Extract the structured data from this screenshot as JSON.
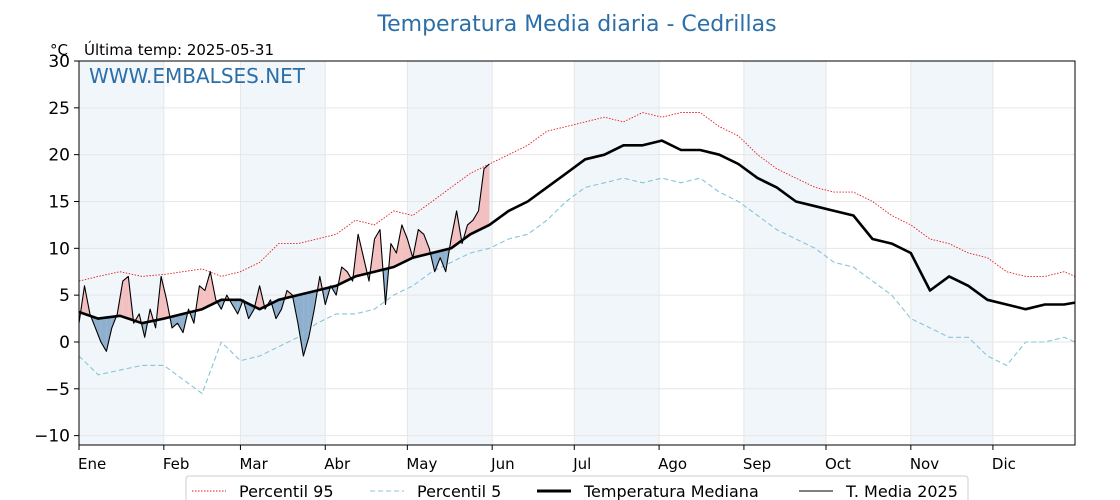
{
  "chart_data": {
    "type": "line",
    "title": "Temperatura Media diaria - Cedrillas",
    "unit_label": "°C",
    "subtitle": "Última temp: 2025-05-31",
    "watermark": "WWW.EMBALSES.NET",
    "ylim": [
      -11,
      30
    ],
    "yticks": [
      -10,
      -5,
      0,
      5,
      10,
      15,
      20,
      25,
      30
    ],
    "xlim": [
      1,
      365
    ],
    "months": [
      {
        "label": "Ene",
        "day": 1
      },
      {
        "label": "Feb",
        "day": 32
      },
      {
        "label": "Mar",
        "day": 60
      },
      {
        "label": "Abr",
        "day": 91
      },
      {
        "label": "May",
        "day": 121
      },
      {
        "label": "Jun",
        "day": 152
      },
      {
        "label": "Jul",
        "day": 182
      },
      {
        "label": "Ago",
        "day": 213
      },
      {
        "label": "Sep",
        "day": 244
      },
      {
        "label": "Oct",
        "day": 274
      },
      {
        "label": "Nov",
        "day": 305
      },
      {
        "label": "Dic",
        "day": 335
      }
    ],
    "grid": true,
    "legend_position": "bottom-center",
    "legend": [
      "Percentil 95",
      "Percentil 5",
      "Temperatura Mediana",
      "T. Media 2025"
    ],
    "series": [
      {
        "name": "Percentil 95",
        "color": "#e31a1c",
        "style": "dotted",
        "x": [
          1,
          8,
          16,
          24,
          32,
          39,
          46,
          53,
          60,
          67,
          74,
          81,
          88,
          95,
          102,
          109,
          116,
          123,
          130,
          137,
          144,
          151,
          158,
          165,
          172,
          179,
          186,
          193,
          200,
          207,
          214,
          221,
          228,
          235,
          242,
          249,
          256,
          263,
          270,
          277,
          284,
          291,
          298,
          305,
          312,
          319,
          326,
          333,
          340,
          347,
          354,
          361,
          365
        ],
        "values": [
          6.5,
          7.0,
          7.5,
          7.0,
          7.2,
          7.5,
          7.8,
          7.0,
          7.5,
          8.5,
          10.5,
          10.5,
          11.0,
          11.5,
          13.0,
          12.5,
          14.0,
          13.5,
          15.0,
          16.5,
          18.0,
          19.0,
          20.0,
          21.0,
          22.5,
          23.0,
          23.5,
          24.0,
          23.5,
          24.5,
          24.0,
          24.5,
          24.5,
          23.0,
          22.0,
          20.0,
          18.5,
          17.5,
          16.5,
          16.0,
          16.0,
          15.0,
          13.5,
          12.5,
          11.0,
          10.5,
          9.5,
          9.0,
          7.5,
          7.0,
          7.0,
          7.5,
          7.0
        ]
      },
      {
        "name": "Percentil 5",
        "color": "#89c4d8",
        "style": "dashed",
        "x": [
          1,
          8,
          16,
          24,
          32,
          39,
          46,
          53,
          60,
          67,
          74,
          81,
          88,
          95,
          102,
          109,
          116,
          123,
          130,
          137,
          144,
          151,
          158,
          165,
          172,
          179,
          186,
          193,
          200,
          207,
          214,
          221,
          228,
          235,
          242,
          249,
          256,
          263,
          270,
          277,
          284,
          291,
          298,
          305,
          312,
          319,
          326,
          333,
          340,
          347,
          354,
          361,
          365
        ],
        "values": [
          -1.5,
          -3.5,
          -3.0,
          -2.5,
          -2.5,
          -4.0,
          -5.5,
          0.0,
          -2.0,
          -1.5,
          -0.5,
          0.5,
          2.0,
          3.0,
          3.0,
          3.5,
          5.0,
          6.0,
          7.5,
          8.5,
          9.5,
          10.0,
          11.0,
          11.5,
          13.0,
          15.0,
          16.5,
          17.0,
          17.5,
          17.0,
          17.5,
          17.0,
          17.5,
          16.0,
          15.0,
          13.5,
          12.0,
          11.0,
          10.0,
          8.5,
          8.0,
          6.5,
          5.0,
          2.5,
          1.5,
          0.5,
          0.5,
          -1.5,
          -2.5,
          0.0,
          0.0,
          0.5,
          0.0
        ]
      },
      {
        "name": "Temperatura Mediana",
        "color": "#000000",
        "style": "solid-thick",
        "x": [
          1,
          8,
          16,
          24,
          32,
          39,
          46,
          53,
          60,
          67,
          74,
          81,
          88,
          95,
          102,
          109,
          116,
          123,
          130,
          137,
          144,
          151,
          158,
          165,
          172,
          179,
          186,
          193,
          200,
          207,
          214,
          221,
          228,
          235,
          242,
          249,
          256,
          263,
          270,
          277,
          284,
          291,
          298,
          305,
          312,
          319,
          326,
          333,
          340,
          347,
          354,
          361,
          365
        ],
        "values": [
          3.2,
          2.5,
          2.8,
          2.0,
          2.5,
          3.0,
          3.5,
          4.5,
          4.5,
          3.5,
          4.5,
          5.0,
          5.5,
          6.0,
          7.0,
          7.5,
          8.0,
          9.0,
          9.5,
          10.0,
          11.5,
          12.5,
          14.0,
          15.0,
          16.5,
          18.0,
          19.5,
          20.0,
          21.0,
          21.0,
          21.5,
          20.5,
          20.5,
          20.0,
          19.0,
          17.5,
          16.5,
          15.0,
          14.5,
          14.0,
          13.5,
          11.0,
          10.5,
          9.5,
          5.5,
          7.0,
          6.0,
          4.5,
          4.0,
          3.5,
          4.0,
          4.0,
          4.2
        ]
      },
      {
        "name": "T. Media 2025",
        "color": "#000000",
        "style": "solid-thin",
        "x": [
          1,
          3,
          5,
          7,
          9,
          11,
          13,
          15,
          17,
          19,
          21,
          23,
          25,
          27,
          29,
          31,
          33,
          35,
          37,
          39,
          41,
          43,
          45,
          47,
          49,
          51,
          53,
          55,
          57,
          59,
          61,
          63,
          65,
          67,
          69,
          71,
          73,
          75,
          77,
          79,
          81,
          83,
          85,
          87,
          89,
          91,
          93,
          95,
          97,
          99,
          101,
          103,
          105,
          107,
          109,
          111,
          113,
          115,
          117,
          119,
          121,
          123,
          125,
          127,
          129,
          131,
          133,
          135,
          137,
          139,
          141,
          143,
          145,
          147,
          149,
          151
        ],
        "values": [
          2.0,
          6.0,
          3.0,
          1.5,
          0.0,
          -1.0,
          1.5,
          3.0,
          6.5,
          7.0,
          2.0,
          3.0,
          0.5,
          3.5,
          1.5,
          7.0,
          4.5,
          1.5,
          2.0,
          1.0,
          3.5,
          2.0,
          6.0,
          5.5,
          7.5,
          4.5,
          3.5,
          5.0,
          4.0,
          3.0,
          4.5,
          2.5,
          3.5,
          6.0,
          3.5,
          4.5,
          2.5,
          3.5,
          5.5,
          5.0,
          2.0,
          -1.5,
          0.5,
          3.5,
          7.0,
          4.0,
          6.0,
          5.0,
          8.0,
          7.5,
          6.5,
          11.5,
          9.0,
          6.5,
          11.0,
          12.0,
          4.0,
          10.5,
          9.5,
          12.5,
          11.0,
          9.0,
          12.0,
          11.5,
          10.0,
          7.5,
          9.0,
          7.5,
          11.0,
          14.0,
          10.5,
          12.5,
          13.0,
          14.0,
          18.5,
          19.0
        ]
      }
    ]
  }
}
